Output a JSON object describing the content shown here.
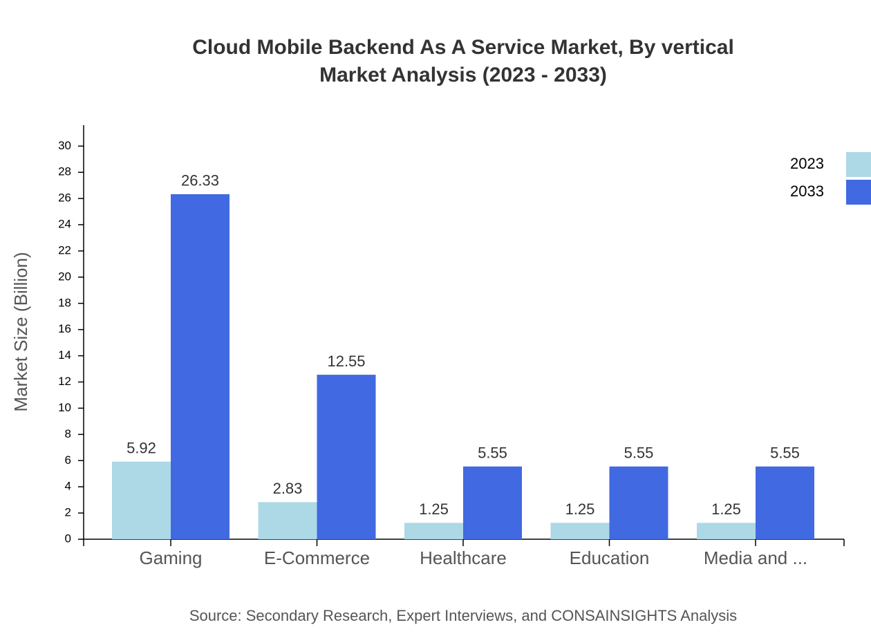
{
  "chart_data": {
    "type": "bar",
    "title": [
      "Cloud Mobile Backend As A Service Market, By vertical",
      "Market Analysis (2023 - 2033)"
    ],
    "y_label": "Market Size (Billion)",
    "source": "Source: Secondary Research, Expert Interviews, and CONSAINSIGHTS Analysis",
    "categories": [
      "Gaming",
      "E-Commerce",
      "Healthcare",
      "Education",
      "Media and ..."
    ],
    "series": [
      {
        "name": "2023",
        "color": "#add8e6",
        "values": [
          5.92,
          2.83,
          1.25,
          1.25,
          1.25
        ]
      },
      {
        "name": "2033",
        "color": "#4169e1",
        "values": [
          26.33,
          12.55,
          5.55,
          5.55,
          5.55
        ]
      }
    ],
    "ylim": [
      0,
      31.6
    ],
    "yticks": [
      0,
      2,
      4,
      6,
      8,
      10,
      12,
      14,
      16,
      18,
      20,
      22,
      24,
      26,
      28,
      30
    ],
    "legend": "top-right"
  }
}
